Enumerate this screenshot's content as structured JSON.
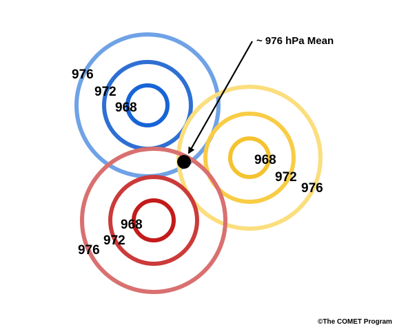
{
  "annotation": "~ 976 hPa Mean",
  "credit": "©The COMET Program",
  "systems": [
    {
      "name": "blue-low",
      "colors": {
        "inner": "#1764d6",
        "middle": "#2e6fd3",
        "outer": "#6fa2e6"
      },
      "labels": {
        "inner": "968",
        "middle": "972",
        "outer": "976"
      }
    },
    {
      "name": "yellow-low",
      "colors": {
        "inner": "#f5c330",
        "middle": "#f8cc45",
        "outer": "#fbde7d"
      },
      "labels": {
        "inner": "968",
        "middle": "972",
        "outer": "976"
      }
    },
    {
      "name": "red-low",
      "colors": {
        "inner": "#c41a1a",
        "middle": "#cc3a3a",
        "outer": "#d97070"
      },
      "labels": {
        "inner": "968",
        "middle": "972",
        "outer": "976"
      }
    }
  ],
  "mean_point_color": "#000000"
}
